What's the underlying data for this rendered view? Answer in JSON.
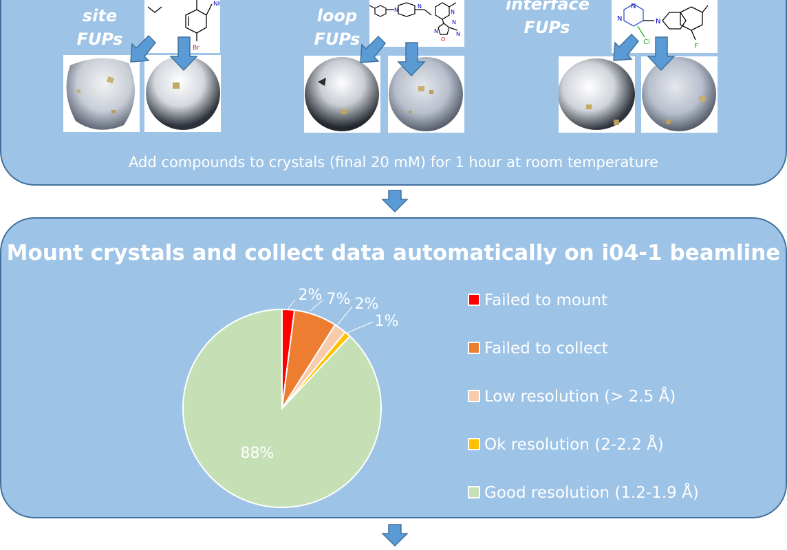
{
  "top_panel": {
    "fup_labels": [
      {
        "line1": "site",
        "line2": "FUPs"
      },
      {
        "line1": "loop",
        "line2": "FUPs"
      },
      {
        "line1": "interface",
        "line2": "FUPs"
      }
    ],
    "molecule_atoms": {
      "mol1": [
        "NH",
        "Br"
      ],
      "mol2": [
        "N",
        "N",
        "N",
        "N",
        "N",
        "O",
        "N"
      ],
      "mol3": [
        "N",
        "N",
        "N",
        "Cl",
        "F"
      ]
    },
    "caption": "Add compounds to crystals (final 20 mM) for 1 hour at room temperature"
  },
  "bottom_panel": {
    "title": "Mount crystals and collect data automatically on i04-1 beamline"
  },
  "colors": {
    "panel_fill": "#9dc3e6",
    "panel_border": "#41719c",
    "arrow_fill": "#5b9bd5",
    "arrow_border": "#41719c"
  },
  "chart_data": {
    "type": "pie",
    "slices": [
      {
        "label": "Failed to mount",
        "value": 2,
        "display": "2%",
        "color": "#ff0000"
      },
      {
        "label": "Failed to collect",
        "value": 7,
        "display": "7%",
        "color": "#ed7d31"
      },
      {
        "label": "Low resolution (> 2.5 Å)",
        "value": 2,
        "display": "2%",
        "color": "#f8cbad"
      },
      {
        "label": "Ok resolution (2-2.2 Å)",
        "value": 1,
        "display": "1%",
        "color": "#ffc000"
      },
      {
        "label": "Good resolution (1.2-1.9 Å)",
        "value": 88,
        "display": "88%",
        "color": "#c5e0b4"
      }
    ],
    "legend_placement": "right"
  }
}
